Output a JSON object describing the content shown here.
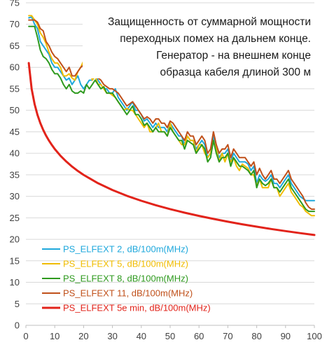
{
  "chart_data": {
    "type": "line",
    "title_lines": [
      "Защищенность от суммарной мощности",
      "переходных помех на дальнем конце.",
      "Генератор - на внешнем конце",
      "образца кабеля длиной 300 м"
    ],
    "xlabel": "",
    "ylabel": "",
    "xlim": [
      0,
      100
    ],
    "ylim": [
      0,
      75
    ],
    "x_ticks": [
      "0",
      "10",
      "20",
      "30",
      "40",
      "50",
      "60",
      "70",
      "80",
      "90",
      "100"
    ],
    "y_ticks": [
      "0",
      "5",
      "10",
      "15",
      "20",
      "25",
      "30",
      "35",
      "40",
      "45",
      "50",
      "55",
      "60",
      "65",
      "70",
      "75"
    ],
    "grid": "horizontal",
    "legend_position": "bottom-left",
    "series": [
      {
        "name": "PS_ELFEXT 2, dB/100m(MHz)",
        "color": "#1fa8dc",
        "x": [
          1,
          2,
          3,
          4,
          5,
          6,
          7,
          8,
          9,
          10,
          11,
          12,
          13,
          14,
          15,
          16,
          17,
          18,
          19,
          20,
          21,
          22,
          23,
          24,
          25,
          26,
          27,
          28,
          29,
          30,
          31,
          32,
          33,
          34,
          35,
          36,
          37,
          38,
          39,
          40,
          41,
          42,
          43,
          44,
          45,
          46,
          47,
          48,
          49,
          50,
          51,
          52,
          53,
          54,
          55,
          56,
          57,
          58,
          59,
          60,
          61,
          62,
          63,
          64,
          65,
          66,
          67,
          68,
          69,
          70,
          71,
          72,
          73,
          74,
          75,
          76,
          77,
          78,
          79,
          80,
          81,
          82,
          83,
          84,
          85,
          86,
          87,
          88,
          89,
          90,
          91,
          92,
          93,
          94,
          95,
          96,
          97,
          98,
          99,
          100
        ],
        "y": [
          71.5,
          71.7,
          70,
          69,
          66,
          65,
          64,
          63,
          61,
          60,
          60,
          59,
          58,
          57,
          57.5,
          56,
          57,
          58,
          56,
          55,
          56,
          57,
          57,
          58,
          57,
          56,
          55,
          55,
          54,
          54,
          55,
          53,
          52,
          51,
          50,
          51,
          52,
          50,
          50,
          49,
          47.5,
          48,
          47,
          46,
          47,
          46,
          46,
          46,
          45,
          47,
          46,
          45,
          44,
          44,
          42,
          44,
          43,
          43,
          41,
          42,
          43,
          42,
          39,
          40,
          44,
          41,
          39,
          40,
          40,
          41,
          38,
          40,
          39,
          38,
          38,
          38,
          37.5,
          36,
          37,
          33,
          35,
          34,
          33.5,
          34,
          35,
          33,
          33,
          32,
          33,
          34,
          35,
          33,
          32,
          31,
          30,
          29.5,
          29,
          29,
          29,
          29
        ]
      },
      {
        "name": "PS_ELFEXT 5, dB/100m(MHz)",
        "color": "#f0bc00",
        "x": [
          1,
          2,
          3,
          4,
          5,
          6,
          7,
          8,
          9,
          10,
          11,
          12,
          13,
          14,
          15,
          16,
          17,
          18,
          19,
          20,
          21,
          22,
          23,
          24,
          25,
          26,
          27,
          28,
          29,
          30,
          31,
          32,
          33,
          34,
          35,
          36,
          37,
          38,
          39,
          40,
          41,
          42,
          43,
          44,
          45,
          46,
          47,
          48,
          49,
          50,
          51,
          52,
          53,
          54,
          55,
          56,
          57,
          58,
          59,
          60,
          61,
          62,
          63,
          64,
          65,
          66,
          67,
          68,
          69,
          70,
          71,
          72,
          73,
          74,
          75,
          76,
          77,
          78,
          79,
          80,
          81,
          82,
          83,
          84,
          85,
          86,
          87,
          88,
          89,
          90,
          91,
          92,
          93,
          94,
          95,
          96,
          97,
          98,
          99,
          100
        ],
        "y": [
          72,
          72,
          71,
          70,
          68,
          67,
          65.5,
          63.5,
          62,
          61,
          61,
          60,
          58,
          58,
          58.5,
          57.5,
          57,
          59,
          60,
          61.5,
          61,
          60,
          57,
          58,
          56,
          56,
          55,
          54,
          54,
          53.5,
          53,
          52,
          51,
          50,
          50.5,
          50,
          50,
          49,
          48,
          47,
          46,
          47,
          45,
          45,
          46,
          47,
          45,
          45,
          44,
          47,
          45,
          44,
          43,
          42,
          42,
          44,
          43,
          43,
          40,
          42,
          42,
          40,
          39,
          40,
          43,
          41,
          38,
          40,
          38,
          40,
          38,
          39,
          37,
          36,
          37.5,
          37,
          36.5,
          35,
          35,
          32.5,
          34,
          32,
          32,
          32,
          34,
          32,
          32,
          30,
          31,
          32,
          33,
          31,
          30,
          29,
          28,
          27.5,
          26.5,
          26,
          25.5,
          25.5
        ]
      },
      {
        "name": "PS_ELFEXT 8, dB/100m(MHz)",
        "color": "#2e9a1e",
        "x": [
          1,
          2,
          3,
          4,
          5,
          6,
          7,
          8,
          9,
          10,
          11,
          12,
          13,
          14,
          15,
          16,
          17,
          18,
          19,
          20,
          21,
          22,
          23,
          24,
          25,
          26,
          27,
          28,
          29,
          30,
          31,
          32,
          33,
          34,
          35,
          36,
          37,
          38,
          39,
          40,
          41,
          42,
          43,
          44,
          45,
          46,
          47,
          48,
          49,
          50,
          51,
          52,
          53,
          54,
          55,
          56,
          57,
          58,
          59,
          60,
          61,
          62,
          63,
          64,
          65,
          66,
          67,
          68,
          69,
          70,
          71,
          72,
          73,
          74,
          75,
          76,
          77,
          78,
          79,
          80,
          81,
          82,
          83,
          84,
          85,
          86,
          87,
          88,
          89,
          90,
          91,
          92,
          93,
          94,
          95,
          96,
          97,
          98,
          99,
          100
        ],
        "y": [
          69.5,
          69.5,
          69.5,
          67,
          64,
          62.5,
          62,
          61,
          59.5,
          58.5,
          58.5,
          57.5,
          56,
          55,
          56,
          54.5,
          54,
          54,
          54.5,
          54,
          56,
          55,
          56,
          57,
          56,
          55,
          55.5,
          54,
          54,
          54,
          53,
          52,
          51,
          50,
          49,
          50,
          51,
          49,
          49,
          48,
          46.5,
          47,
          46,
          45,
          46,
          45,
          45,
          45,
          44,
          46,
          45,
          44,
          43,
          43,
          41,
          43,
          42.5,
          42,
          40,
          41,
          42,
          41,
          38,
          39,
          43,
          40,
          38,
          39,
          39,
          40,
          37,
          39,
          38,
          37,
          37,
          36.5,
          36,
          35,
          36,
          32,
          34,
          33,
          32.5,
          33,
          34,
          32,
          32,
          31,
          32,
          33,
          34,
          32,
          31,
          30,
          29,
          28,
          27,
          26.5,
          26.5,
          26.5
        ]
      },
      {
        "name": "PS_ELFEXT 11, dB/100m(MHz)",
        "color": "#c0501a",
        "x": [
          1,
          2,
          3,
          4,
          5,
          6,
          7,
          8,
          9,
          10,
          11,
          12,
          13,
          14,
          15,
          16,
          17,
          18,
          19,
          20,
          21,
          22,
          23,
          24,
          25,
          26,
          27,
          28,
          29,
          30,
          31,
          32,
          33,
          34,
          35,
          36,
          37,
          38,
          39,
          40,
          41,
          42,
          43,
          44,
          45,
          46,
          47,
          48,
          49,
          50,
          51,
          52,
          53,
          54,
          55,
          56,
          57,
          58,
          59,
          60,
          61,
          62,
          63,
          64,
          65,
          66,
          67,
          68,
          69,
          70,
          71,
          72,
          73,
          74,
          75,
          76,
          77,
          78,
          79,
          80,
          81,
          82,
          83,
          84,
          85,
          86,
          87,
          88,
          89,
          90,
          91,
          92,
          93,
          94,
          95,
          96,
          97,
          98,
          99,
          100
        ],
        "y": [
          71,
          71,
          71,
          70.5,
          69,
          68.5,
          66,
          65,
          63.5,
          62.5,
          62,
          61,
          60,
          59,
          60,
          58,
          58,
          59,
          60,
          60.5,
          59,
          58,
          58,
          58,
          57.5,
          57,
          56,
          55.5,
          55,
          55,
          54.5,
          54,
          53,
          52,
          51,
          51.5,
          52,
          51,
          50,
          49,
          48,
          48.5,
          48,
          47,
          48,
          48,
          47,
          47,
          46,
          47.5,
          47,
          46,
          45,
          44,
          43,
          45,
          44,
          44,
          42,
          43,
          44,
          43,
          40,
          41,
          45,
          42,
          40,
          41,
          41,
          42,
          39,
          41,
          40,
          39,
          39,
          39,
          38,
          37,
          38,
          35,
          36.5,
          35,
          34,
          35,
          36,
          34,
          34,
          33,
          34,
          35,
          36,
          34,
          33,
          32,
          31,
          30,
          28.5,
          27.5,
          27,
          27
        ]
      },
      {
        "name": "PS_ELFEXT 5e min, dB/100m(MHz)",
        "color": "#e2231a",
        "x": [
          1,
          2,
          3,
          4,
          5,
          6,
          7,
          8,
          9,
          10,
          12,
          14,
          16,
          18,
          20,
          25,
          30,
          35,
          40,
          45,
          50,
          55,
          60,
          65,
          70,
          75,
          80,
          85,
          90,
          95,
          100
        ],
        "y": [
          61,
          54.98,
          51.46,
          48.96,
          47.02,
          45.44,
          44.1,
          42.94,
          41.92,
          41,
          39.42,
          38.08,
          36.92,
          35.89,
          34.98,
          33.04,
          31.46,
          30.12,
          28.96,
          27.94,
          27.02,
          26.19,
          25.44,
          24.74,
          24.1,
          23.5,
          22.94,
          22.41,
          21.92,
          21.45,
          21
        ]
      }
    ]
  }
}
